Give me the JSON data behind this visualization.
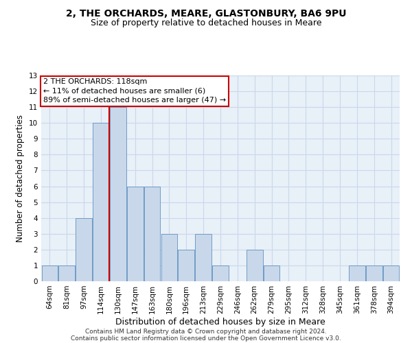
{
  "title_line1": "2, THE ORCHARDS, MEARE, GLASTONBURY, BA6 9PU",
  "title_line2": "Size of property relative to detached houses in Meare",
  "xlabel": "Distribution of detached houses by size in Meare",
  "ylabel": "Number of detached properties",
  "categories": [
    "64sqm",
    "81sqm",
    "97sqm",
    "114sqm",
    "130sqm",
    "147sqm",
    "163sqm",
    "180sqm",
    "196sqm",
    "213sqm",
    "229sqm",
    "246sqm",
    "262sqm",
    "279sqm",
    "295sqm",
    "312sqm",
    "328sqm",
    "345sqm",
    "361sqm",
    "378sqm",
    "394sqm"
  ],
  "values": [
    1,
    1,
    4,
    10,
    11,
    6,
    6,
    3,
    2,
    3,
    1,
    0,
    2,
    1,
    0,
    0,
    0,
    0,
    1,
    1,
    1
  ],
  "bar_color": "#c8d8ea",
  "bar_edge_color": "#6090c0",
  "vline_color": "#cc0000",
  "vline_x": 3.5,
  "annotation_text_line1": "2 THE ORCHARDS: 118sqm",
  "annotation_text_line2": "← 11% of detached houses are smaller (6)",
  "annotation_text_line3": "89% of semi-detached houses are larger (47) →",
  "box_facecolor": "#ffffff",
  "box_edgecolor": "#cc0000",
  "ylim": [
    0,
    13
  ],
  "yticks": [
    0,
    1,
    2,
    3,
    4,
    5,
    6,
    7,
    8,
    9,
    10,
    11,
    12,
    13
  ],
  "grid_color": "#c8d8ea",
  "bg_color": "#e8f0f8",
  "footer_line1": "Contains HM Land Registry data © Crown copyright and database right 2024.",
  "footer_line2": "Contains public sector information licensed under the Open Government Licence v3.0.",
  "title_fontsize": 10,
  "subtitle_fontsize": 9,
  "xlabel_fontsize": 9,
  "ylabel_fontsize": 8.5,
  "tick_fontsize": 7.5,
  "annotation_fontsize": 8,
  "footer_fontsize": 6.5
}
